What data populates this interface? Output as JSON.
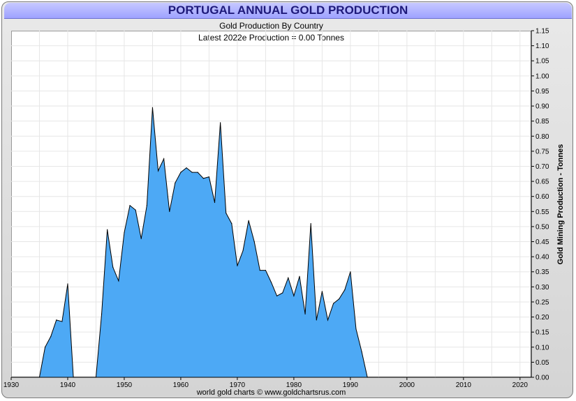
{
  "header": {
    "title": "PORTUGAL ANNUAL GOLD PRODUCTION",
    "subtitle": "Gold Production By Country",
    "latest": "Latest 2022e  Production = 0.00 Tonnes"
  },
  "footer": {
    "credit": "world gold charts © www.goldchartsrus.com"
  },
  "colors": {
    "fill": "#4da9f5",
    "stroke": "#000000",
    "grid": "#e6e6e6",
    "title_text": "#1e1a7a"
  },
  "chart_data": {
    "type": "area",
    "title": "PORTUGAL ANNUAL GOLD PRODUCTION",
    "subtitle": "Gold Production By Country",
    "xlabel": "",
    "ylabel": "Gold Mining Production - Tonnes",
    "xlim": [
      1930,
      2022
    ],
    "ylim": [
      0,
      1.15
    ],
    "x_ticks": [
      "1930",
      "1940",
      "1950",
      "1960",
      "1970",
      "1980",
      "1990",
      "2000",
      "2010",
      "2020"
    ],
    "y_ticks": [
      "0.00",
      "0.05",
      "0.10",
      "0.15",
      "0.20",
      "0.25",
      "0.30",
      "0.35",
      "0.40",
      "0.45",
      "0.50",
      "0.55",
      "0.60",
      "0.65",
      "0.70",
      "0.75",
      "0.80",
      "0.85",
      "0.90",
      "0.95",
      "1.00",
      "1.05",
      "1.10",
      "1.15"
    ],
    "y_axis_side": "right",
    "grid": true,
    "series": [
      {
        "name": "Portugal",
        "segments": [
          {
            "x": [
              1935,
              1936,
              1937,
              1938,
              1939,
              1940,
              1941
            ],
            "values": [
              0.0,
              0.1,
              0.135,
              0.19,
              0.185,
              0.31,
              0.0
            ]
          },
          {
            "x": [
              1945,
              1946,
              1947,
              1948,
              1949,
              1950,
              1951,
              1952,
              1953,
              1954,
              1955,
              1956,
              1957,
              1958,
              1959,
              1960,
              1961,
              1962,
              1963,
              1964,
              1965,
              1966,
              1967,
              1968,
              1969,
              1970,
              1971,
              1972,
              1973,
              1974,
              1975,
              1976,
              1977,
              1978,
              1979,
              1980,
              1981,
              1982,
              1983,
              1984,
              1985,
              1986,
              1987,
              1988,
              1989,
              1990,
              1991,
              1992,
              1993
            ],
            "values": [
              0.0,
              0.21,
              0.49,
              0.365,
              0.32,
              0.48,
              0.57,
              0.555,
              0.46,
              0.57,
              0.895,
              0.685,
              0.725,
              0.55,
              0.645,
              0.68,
              0.695,
              0.68,
              0.68,
              0.66,
              0.665,
              0.58,
              0.845,
              0.545,
              0.51,
              0.37,
              0.42,
              0.52,
              0.45,
              0.355,
              0.355,
              0.315,
              0.27,
              0.28,
              0.33,
              0.27,
              0.335,
              0.21,
              0.51,
              0.19,
              0.285,
              0.19,
              0.245,
              0.26,
              0.29,
              0.35,
              0.16,
              0.085,
              0.0
            ]
          }
        ]
      }
    ]
  }
}
